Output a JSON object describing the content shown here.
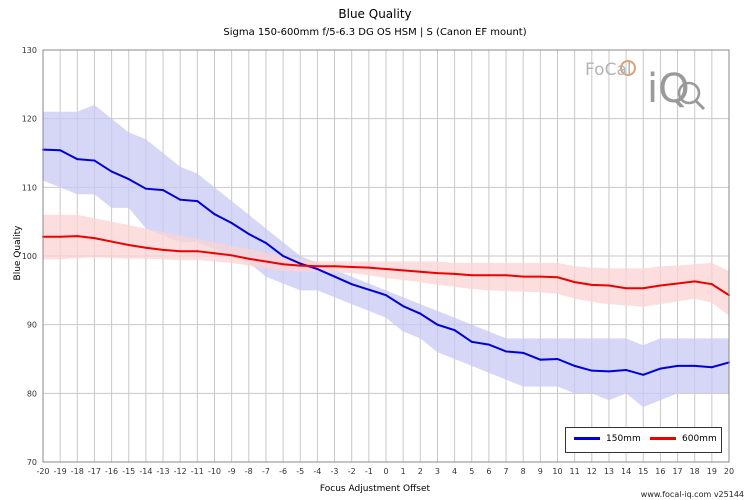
{
  "title": "Blue Quality",
  "subtitle": "Sigma 150-600mm f/5-6.3 DG OS HSM | S (Canon EF mount)",
  "footer": "www.focal-iq.com  v25144",
  "logo": {
    "text_top": "FoCal",
    "text_big": "iQ"
  },
  "colors": {
    "series_150": "#0000dd",
    "band_150": "#c8c8f4",
    "series_600": "#ee0000",
    "band_600": "#fbd3d3",
    "grid": "#c8c8c8"
  },
  "legend": [
    {
      "name": "150mm",
      "color": "#0000dd"
    },
    {
      "name": "600mm",
      "color": "#ee0000"
    }
  ],
  "chart_data": {
    "type": "line",
    "title": "Blue Quality",
    "xlabel": "Focus Adjustment Offset",
    "ylabel": "Blue Quality",
    "xlim": [
      -20,
      20
    ],
    "ylim": [
      70,
      130
    ],
    "grid": true,
    "legend_position": "bottom-right",
    "x": [
      -20,
      -19,
      -18,
      -17,
      -16,
      -15,
      -14,
      -13,
      -12,
      -11,
      -10,
      -9,
      -8,
      -7,
      -6,
      -5,
      -4,
      -3,
      -2,
      -1,
      0,
      1,
      2,
      3,
      4,
      5,
      6,
      7,
      8,
      9,
      10,
      11,
      12,
      13,
      14,
      15,
      16,
      17,
      18,
      19,
      20
    ],
    "x_ticks": [
      -20,
      -19,
      -18,
      -17,
      -16,
      -15,
      -14,
      -13,
      -12,
      -11,
      -10,
      -9,
      -8,
      -7,
      -6,
      -5,
      -4,
      -3,
      -2,
      -1,
      0,
      1,
      2,
      3,
      4,
      5,
      6,
      7,
      8,
      9,
      10,
      11,
      12,
      13,
      14,
      15,
      16,
      17,
      18,
      19,
      20
    ],
    "y_ticks": [
      70,
      80,
      90,
      100,
      110,
      120,
      130
    ],
    "series": [
      {
        "name": "150mm",
        "values": [
          115.5,
          115.4,
          114.1,
          113.9,
          112.3,
          111.2,
          109.8,
          109.6,
          108.2,
          108.0,
          106.1,
          104.8,
          103.2,
          101.9,
          100.0,
          98.9,
          98.1,
          97.0,
          95.9,
          95.1,
          94.3,
          92.7,
          91.6,
          90.0,
          89.2,
          87.5,
          87.1,
          86.1,
          85.9,
          84.9,
          85.0,
          84.0,
          83.3,
          83.2,
          83.4,
          82.7,
          83.6,
          84.0,
          84.0,
          83.8,
          84.5
        ],
        "upper": [
          121,
          121,
          121,
          122,
          120,
          118,
          117,
          115,
          113,
          112,
          110,
          108,
          106,
          104,
          102,
          100,
          99,
          98,
          97,
          96,
          95,
          94,
          93,
          92,
          91,
          90,
          89,
          88,
          88,
          88,
          88,
          88,
          88,
          88,
          88,
          87,
          88,
          88,
          88,
          88,
          88
        ],
        "lower": [
          111,
          110,
          109,
          109,
          107,
          107,
          104,
          103,
          102,
          102,
          101,
          100,
          99,
          97,
          96,
          95,
          95,
          94,
          93,
          92,
          91,
          89,
          88,
          86,
          85,
          84,
          83,
          82,
          81,
          81,
          81,
          80,
          80,
          79,
          80,
          78,
          79,
          80,
          80,
          80,
          80
        ]
      },
      {
        "name": "600mm",
        "values": [
          102.8,
          102.8,
          102.9,
          102.6,
          102.1,
          101.6,
          101.2,
          100.9,
          100.7,
          100.7,
          100.4,
          100.1,
          99.6,
          99.2,
          98.8,
          98.6,
          98.5,
          98.5,
          98.4,
          98.3,
          98.1,
          97.9,
          97.7,
          97.5,
          97.4,
          97.2,
          97.2,
          97.2,
          97.0,
          97.0,
          96.9,
          96.2,
          95.8,
          95.7,
          95.3,
          95.3,
          95.7,
          96.0,
          96.3,
          95.9,
          94.3
        ],
        "upper": [
          106,
          106,
          106,
          105.5,
          105,
          104.5,
          104,
          103.5,
          103,
          102.5,
          102,
          101.5,
          101,
          100.5,
          100,
          99.5,
          99.2,
          99.2,
          99.2,
          99.2,
          99.2,
          99.2,
          99.2,
          99.2,
          99.0,
          99.0,
          99.0,
          99.0,
          99.0,
          99.0,
          99.0,
          98.5,
          98.3,
          98.2,
          98.2,
          98.2,
          98.5,
          98.6,
          98.8,
          99.0,
          97.8
        ],
        "lower": [
          99.5,
          99.5,
          99.7,
          99.8,
          99.7,
          99.6,
          99.6,
          99.5,
          99.4,
          99.4,
          99.2,
          99.0,
          98.6,
          98.2,
          97.8,
          97.7,
          97.7,
          97.6,
          97.5,
          97.2,
          96.8,
          96.5,
          96.2,
          95.8,
          95.5,
          95.2,
          95.0,
          94.9,
          94.8,
          94.7,
          94.5,
          93.8,
          93.3,
          93.0,
          92.8,
          92.6,
          93.0,
          93.4,
          93.8,
          93.2,
          91.3
        ]
      }
    ]
  }
}
